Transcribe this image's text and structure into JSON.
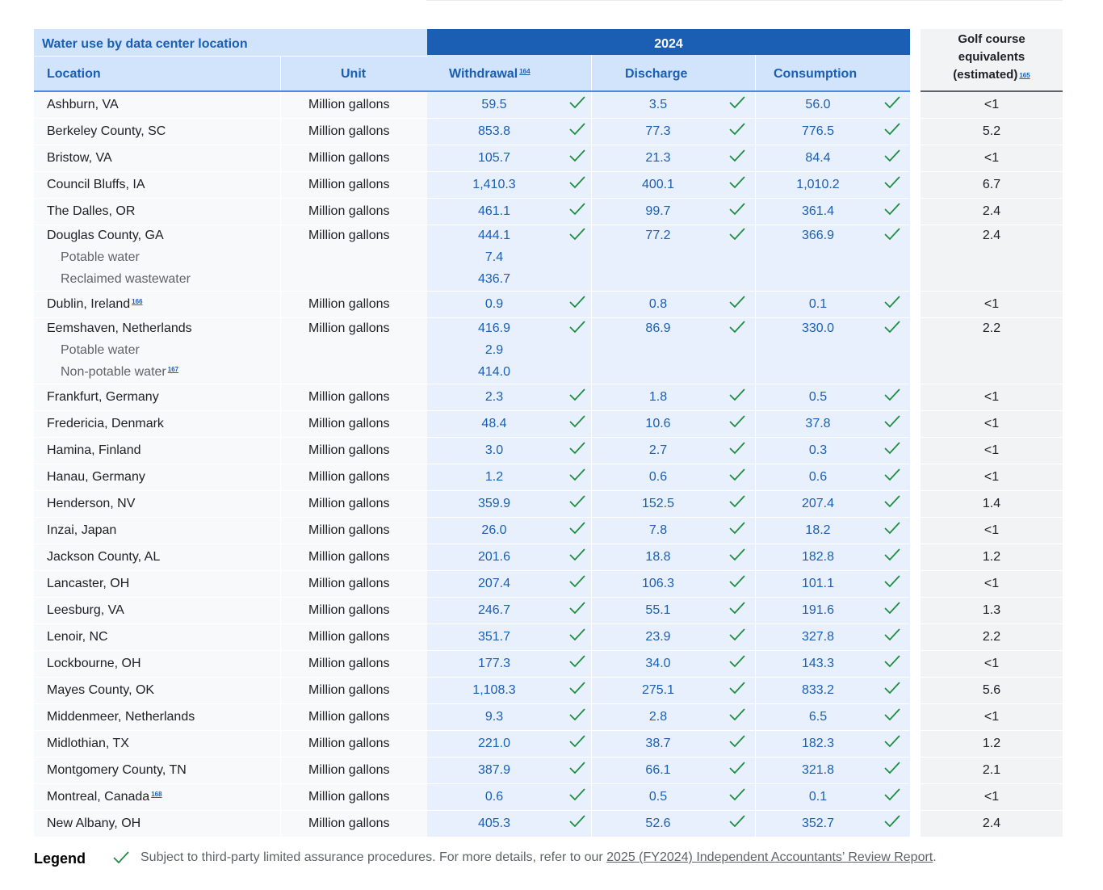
{
  "table": {
    "title": "Water use by data center location",
    "columns": {
      "location": "Location",
      "unit": "Unit",
      "year": "2024",
      "withdrawal": "Withdrawal",
      "withdrawal_fn": "164",
      "discharge": "Discharge",
      "consumption": "Consumption",
      "golf_line1": "Golf course",
      "golf_line2": "equivalents",
      "golf_line3": "(estimated)",
      "golf_fn": "165"
    },
    "rows": [
      {
        "location": "Ashburn, VA",
        "unit": "Million gallons",
        "withdrawal": "59.5",
        "discharge": "3.5",
        "consumption": "56.0",
        "golf": "<1"
      },
      {
        "location": "Berkeley County, SC",
        "unit": "Million gallons",
        "withdrawal": "853.8",
        "discharge": "77.3",
        "consumption": "776.5",
        "golf": "5.2"
      },
      {
        "location": "Bristow, VA",
        "unit": "Million gallons",
        "withdrawal": "105.7",
        "discharge": "21.3",
        "consumption": "84.4",
        "golf": "<1"
      },
      {
        "location": "Council Bluffs, IA",
        "unit": "Million gallons",
        "withdrawal": "1,410.3",
        "discharge": "400.1",
        "consumption": "1,010.2",
        "golf": "6.7"
      },
      {
        "location": "The Dalles, OR",
        "unit": "Million gallons",
        "withdrawal": "461.1",
        "discharge": "99.7",
        "consumption": "361.4",
        "golf": "2.4"
      },
      {
        "location": "Douglas County, GA",
        "unit": "Million gallons",
        "withdrawal": "444.1",
        "discharge": "77.2",
        "consumption": "366.9",
        "golf": "2.4",
        "subs": [
          {
            "label": "Potable water",
            "value": "7.4"
          },
          {
            "label": "Reclaimed wastewater",
            "value": "436.7"
          }
        ]
      },
      {
        "location": "Dublin, Ireland",
        "fn": "166",
        "unit": "Million gallons",
        "withdrawal": "0.9",
        "discharge": "0.8",
        "consumption": "0.1",
        "golf": "<1"
      },
      {
        "location": "Eemshaven, Netherlands",
        "unit": "Million gallons",
        "withdrawal": "416.9",
        "discharge": "86.9",
        "consumption": "330.0",
        "golf": "2.2",
        "subs": [
          {
            "label": "Potable water",
            "value": "2.9"
          },
          {
            "label": "Non-potable water",
            "fn": "167",
            "value": "414.0"
          }
        ]
      },
      {
        "location": "Frankfurt, Germany",
        "unit": "Million gallons",
        "withdrawal": "2.3",
        "discharge": "1.8",
        "consumption": "0.5",
        "golf": "<1"
      },
      {
        "location": "Fredericia, Denmark",
        "unit": "Million gallons",
        "withdrawal": "48.4",
        "discharge": "10.6",
        "consumption": "37.8",
        "golf": "<1"
      },
      {
        "location": "Hamina, Finland",
        "unit": "Million gallons",
        "withdrawal": "3.0",
        "discharge": "2.7",
        "consumption": "0.3",
        "golf": "<1"
      },
      {
        "location": "Hanau, Germany",
        "unit": "Million gallons",
        "withdrawal": "1.2",
        "discharge": "0.6",
        "consumption": "0.6",
        "golf": "<1"
      },
      {
        "location": "Henderson, NV",
        "unit": "Million gallons",
        "withdrawal": "359.9",
        "discharge": "152.5",
        "consumption": "207.4",
        "golf": "1.4"
      },
      {
        "location": "Inzai, Japan",
        "unit": "Million gallons",
        "withdrawal": "26.0",
        "discharge": "7.8",
        "consumption": "18.2",
        "golf": "<1"
      },
      {
        "location": "Jackson County, AL",
        "unit": "Million gallons",
        "withdrawal": "201.6",
        "discharge": "18.8",
        "consumption": "182.8",
        "golf": "1.2"
      },
      {
        "location": "Lancaster, OH",
        "unit": "Million gallons",
        "withdrawal": "207.4",
        "discharge": "106.3",
        "consumption": "101.1",
        "golf": "<1"
      },
      {
        "location": "Leesburg, VA",
        "unit": "Million gallons",
        "withdrawal": "246.7",
        "discharge": "55.1",
        "consumption": "191.6",
        "golf": "1.3"
      },
      {
        "location": "Lenoir, NC",
        "unit": "Million gallons",
        "withdrawal": "351.7",
        "discharge": "23.9",
        "consumption": "327.8",
        "golf": "2.2"
      },
      {
        "location": "Lockbourne, OH",
        "unit": "Million gallons",
        "withdrawal": "177.3",
        "discharge": "34.0",
        "consumption": "143.3",
        "golf": "<1"
      },
      {
        "location": "Mayes County, OK",
        "unit": "Million gallons",
        "withdrawal": "1,108.3",
        "discharge": "275.1",
        "consumption": "833.2",
        "golf": "5.6"
      },
      {
        "location": "Middenmeer, Netherlands",
        "unit": "Million gallons",
        "withdrawal": "9.3",
        "discharge": "2.8",
        "consumption": "6.5",
        "golf": "<1"
      },
      {
        "location": "Midlothian, TX",
        "unit": "Million gallons",
        "withdrawal": "221.0",
        "discharge": "38.7",
        "consumption": "182.3",
        "golf": "1.2"
      },
      {
        "location": "Montgomery County, TN",
        "unit": "Million gallons",
        "withdrawal": "387.9",
        "discharge": "66.1",
        "consumption": "321.8",
        "golf": "2.1"
      },
      {
        "location": "Montreal, Canada",
        "fn": "168",
        "unit": "Million gallons",
        "withdrawal": "0.6",
        "discharge": "0.5",
        "consumption": "0.1",
        "golf": "<1"
      },
      {
        "location": "New Albany, OH",
        "unit": "Million gallons",
        "withdrawal": "405.3",
        "discharge": "52.6",
        "consumption": "352.7",
        "golf": "2.4"
      }
    ]
  },
  "legend": {
    "title": "Legend",
    "icon": "checkmark-icon",
    "text": "Subject to third-party limited assurance procedures. For more details, refer to our ",
    "link_text": "2025 (FY2024) Independent Accountants’ Review Report",
    "trailing": "."
  },
  "colors": {
    "header_blue": "#1a5fb4",
    "header_light": "#d2e3fc",
    "data_band": "#e8f0fe",
    "check_green": "#1e8e3e"
  }
}
